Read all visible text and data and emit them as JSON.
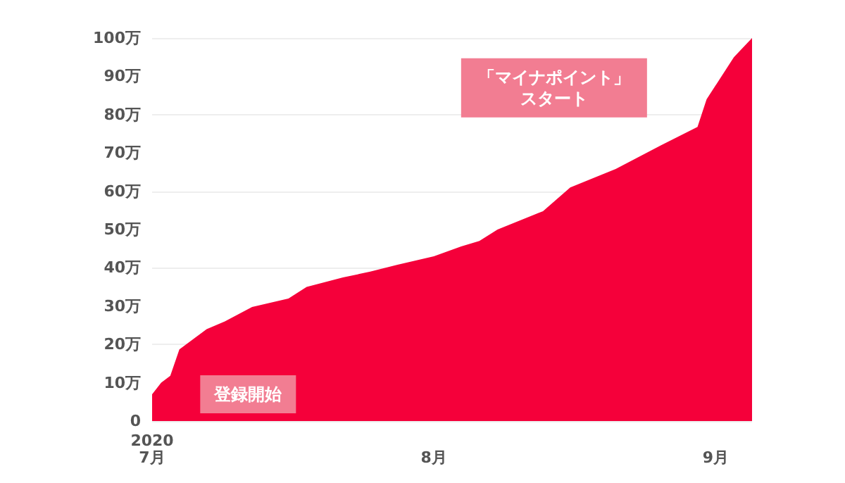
{
  "chart_data": {
    "type": "area",
    "color": "#f5003a",
    "x": [
      "2020-07-01",
      "2020-07-02",
      "2020-07-03",
      "2020-07-04",
      "2020-07-07",
      "2020-07-09",
      "2020-07-12",
      "2020-07-16",
      "2020-07-18",
      "2020-07-22",
      "2020-07-25",
      "2020-07-28",
      "2020-08-01",
      "2020-08-04",
      "2020-08-06",
      "2020-08-08",
      "2020-08-13",
      "2020-08-16",
      "2020-08-21",
      "2020-08-26",
      "2020-08-30",
      "2020-08-31",
      "2020-09-03",
      "2020-09-05"
    ],
    "values": [
      7,
      10,
      11.8,
      18.7,
      24,
      26,
      29.8,
      32,
      35,
      37.5,
      39,
      40.8,
      43,
      45.6,
      47,
      50,
      54.8,
      61,
      65.8,
      72,
      76.8,
      84,
      95,
      100
    ],
    "xlim": [
      "2020-07-01",
      "2020-09-05"
    ],
    "xticks": [
      {
        "value": "2020-07-01",
        "label": "2020\n7月"
      },
      {
        "value": "2020-08-01",
        "label": "8月"
      },
      {
        "value": "2020-09-01",
        "label": "9月"
      }
    ],
    "ylim": [
      0,
      100
    ],
    "yticks": [
      0,
      {
        "value": 10,
        "label": "10万"
      },
      {
        "value": 20,
        "label": "20万"
      },
      {
        "value": 30,
        "label": "30万"
      },
      {
        "value": 40,
        "label": "40万"
      },
      {
        "value": 50,
        "label": "50万"
      },
      {
        "value": 60,
        "label": "60万"
      },
      {
        "value": 70,
        "label": "70万"
      },
      {
        "value": 80,
        "label": "80万"
      },
      {
        "value": 90,
        "label": "90万"
      },
      {
        "value": 100,
        "label": "100万"
      }
    ],
    "grid": "y",
    "annotations": [
      "登録開始",
      "「マイナポイント」スタート"
    ]
  }
}
